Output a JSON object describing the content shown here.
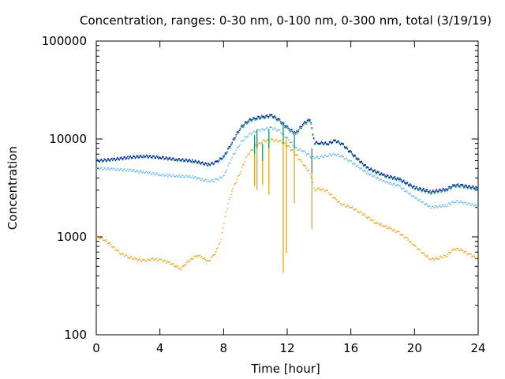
{
  "chart_data": {
    "type": "scatter",
    "title": "Concentration, ranges: 0-30 nm, 0-100 nm, 0-300 nm, total (3/19/19)",
    "xlabel": "Time [hour]",
    "ylabel": "Concentration",
    "xlim": [
      0,
      24
    ],
    "ylim": [
      100,
      100000
    ],
    "yscale": "log",
    "xticks": [
      0,
      4,
      8,
      12,
      16,
      20,
      24
    ],
    "xtick_labels": [
      "0",
      "4",
      "8",
      "12",
      "16",
      "20",
      "24"
    ],
    "yticks": [
      100,
      1000,
      10000,
      100000
    ],
    "ytick_labels": [
      "100",
      "1000",
      "10000",
      "100000"
    ],
    "grid": false,
    "legend": "none",
    "series": [
      {
        "color": "#e69f00",
        "points": [
          [
            0,
            1000
          ],
          [
            0.5,
            930
          ],
          [
            1,
            800
          ],
          [
            1.5,
            680
          ],
          [
            2,
            620
          ],
          [
            2.5,
            590
          ],
          [
            3,
            570
          ],
          [
            3.5,
            590
          ],
          [
            4,
            580
          ],
          [
            4.5,
            550
          ],
          [
            5,
            500
          ],
          [
            5.3,
            470
          ],
          [
            5.6,
            540
          ],
          [
            6,
            600
          ],
          [
            6.3,
            650
          ],
          [
            6.6,
            620
          ],
          [
            7,
            560
          ],
          [
            7.3,
            630
          ],
          [
            7.6,
            760
          ],
          [
            7.8,
            950
          ],
          [
            8,
            1400
          ],
          [
            8.2,
            2000
          ],
          [
            8.5,
            3000
          ],
          [
            9,
            4500
          ],
          [
            9.5,
            7000
          ],
          [
            10,
            8500
          ],
          [
            10.5,
            9500
          ],
          [
            11,
            9800
          ],
          [
            11.5,
            9500
          ],
          [
            12,
            8500
          ],
          [
            12.5,
            7000
          ],
          [
            13,
            5500
          ],
          [
            13.4,
            4500
          ],
          [
            13.7,
            3000
          ],
          [
            14,
            3100
          ],
          [
            14.5,
            2900
          ],
          [
            15,
            2400
          ],
          [
            15.5,
            2100
          ],
          [
            16,
            2000
          ],
          [
            16.5,
            1800
          ],
          [
            17,
            1600
          ],
          [
            17.5,
            1400
          ],
          [
            18,
            1300
          ],
          [
            18.5,
            1200
          ],
          [
            19,
            1100
          ],
          [
            19.5,
            950
          ],
          [
            20,
            800
          ],
          [
            20.5,
            680
          ],
          [
            21,
            590
          ],
          [
            21.5,
            610
          ],
          [
            22,
            650
          ],
          [
            22.5,
            760
          ],
          [
            23,
            720
          ],
          [
            23.5,
            650
          ],
          [
            24,
            590
          ]
        ]
      },
      {
        "color": "#56b4e9",
        "points": [
          [
            0,
            5000
          ],
          [
            1,
            4900
          ],
          [
            2,
            4800
          ],
          [
            3,
            4600
          ],
          [
            4,
            4300
          ],
          [
            5,
            4200
          ],
          [
            6,
            4100
          ],
          [
            7,
            3700
          ],
          [
            7.5,
            3800
          ],
          [
            8,
            4200
          ],
          [
            8.5,
            6500
          ],
          [
            9,
            9000
          ],
          [
            9.5,
            11000
          ],
          [
            10,
            12000
          ],
          [
            10.5,
            12500
          ],
          [
            11,
            13000
          ],
          [
            11.5,
            12000
          ],
          [
            12,
            10000
          ],
          [
            12.5,
            8000
          ],
          [
            13,
            7500
          ],
          [
            13.5,
            6500
          ],
          [
            14,
            6500
          ],
          [
            14.5,
            6800
          ],
          [
            15,
            7000
          ],
          [
            15.5,
            6500
          ],
          [
            16,
            5800
          ],
          [
            17,
            4500
          ],
          [
            18,
            3700
          ],
          [
            19,
            3300
          ],
          [
            20,
            2500
          ],
          [
            21,
            2000
          ],
          [
            22,
            2100
          ],
          [
            22.5,
            2300
          ],
          [
            23,
            2250
          ],
          [
            24,
            2050
          ]
        ]
      },
      {
        "color": "#009e73",
        "points": [
          [
            0,
            5900
          ],
          [
            1,
            6100
          ],
          [
            2,
            6400
          ],
          [
            3,
            6600
          ],
          [
            4,
            6400
          ],
          [
            5,
            6100
          ],
          [
            6,
            5900
          ],
          [
            7,
            5400
          ],
          [
            7.5,
            5700
          ],
          [
            8,
            6500
          ],
          [
            8.5,
            9000
          ],
          [
            9,
            12500
          ],
          [
            9.5,
            15000
          ],
          [
            10,
            16000
          ],
          [
            10.5,
            16500
          ],
          [
            11,
            17000
          ],
          [
            11.5,
            15000
          ],
          [
            12,
            12500
          ],
          [
            12.5,
            11000
          ],
          [
            13,
            14000
          ],
          [
            13.4,
            15500
          ],
          [
            13.7,
            9000
          ],
          [
            14,
            9000
          ],
          [
            14.5,
            8800
          ],
          [
            15,
            9500
          ],
          [
            15.5,
            8500
          ],
          [
            16,
            7000
          ],
          [
            17,
            5000
          ],
          [
            18,
            4200
          ],
          [
            19,
            3800
          ],
          [
            20,
            3100
          ],
          [
            21,
            2800
          ],
          [
            22,
            3000
          ],
          [
            22.5,
            3300
          ],
          [
            23,
            3250
          ],
          [
            24,
            3050
          ]
        ]
      },
      {
        "color": "#0000b4",
        "points": [
          [
            0,
            6000
          ],
          [
            1,
            6200
          ],
          [
            2,
            6500
          ],
          [
            3,
            6700
          ],
          [
            4,
            6500
          ],
          [
            5,
            6200
          ],
          [
            6,
            6000
          ],
          [
            7,
            5500
          ],
          [
            7.5,
            5800
          ],
          [
            8,
            6700
          ],
          [
            8.5,
            9300
          ],
          [
            9,
            13000
          ],
          [
            9.5,
            15500
          ],
          [
            10,
            16500
          ],
          [
            10.5,
            17000
          ],
          [
            11,
            17500
          ],
          [
            11.5,
            15500
          ],
          [
            12,
            13000
          ],
          [
            12.5,
            11500
          ],
          [
            13,
            14500
          ],
          [
            13.4,
            16000
          ],
          [
            13.7,
            9200
          ],
          [
            14,
            9200
          ],
          [
            14.5,
            9000
          ],
          [
            15,
            9700
          ],
          [
            15.5,
            8700
          ],
          [
            16,
            7200
          ],
          [
            17,
            5100
          ],
          [
            18,
            4300
          ],
          [
            19,
            3900
          ],
          [
            20,
            3200
          ],
          [
            21,
            2900
          ],
          [
            22,
            3100
          ],
          [
            22.5,
            3400
          ],
          [
            23,
            3350
          ],
          [
            24,
            3150
          ]
        ]
      }
    ],
    "spikes": [
      {
        "x": 9.95,
        "top": 9500,
        "bottom": 3300,
        "color": "#e69f00"
      },
      {
        "x": 10.1,
        "top": 11000,
        "bottom": 3000,
        "color": "#e69f00"
      },
      {
        "x": 10.45,
        "top": 8500,
        "bottom": 3400,
        "color": "#e69f00"
      },
      {
        "x": 10.85,
        "top": 12000,
        "bottom": 2700,
        "color": "#e69f00"
      },
      {
        "x": 11.75,
        "top": 14000,
        "bottom": 430,
        "color": "#e69f00"
      },
      {
        "x": 11.95,
        "top": 10500,
        "bottom": 680,
        "color": "#e69f00"
      },
      {
        "x": 12.45,
        "top": 10500,
        "bottom": 2200,
        "color": "#e69f00"
      },
      {
        "x": 13.55,
        "top": 8000,
        "bottom": 1200,
        "color": "#e69f00"
      },
      {
        "x": 9.95,
        "top": 11000,
        "bottom": 7000,
        "color": "#009e73"
      },
      {
        "x": 10.1,
        "top": 12500,
        "bottom": 8000,
        "color": "#009e73"
      },
      {
        "x": 10.45,
        "top": 9000,
        "bottom": 6000,
        "color": "#009e73"
      },
      {
        "x": 10.85,
        "top": 12500,
        "bottom": 8000,
        "color": "#009e73"
      },
      {
        "x": 11.75,
        "top": 15000,
        "bottom": 9000,
        "color": "#009e73"
      },
      {
        "x": 12.45,
        "top": 11000,
        "bottom": 8000,
        "color": "#009e73"
      },
      {
        "x": 13.55,
        "top": 8000,
        "bottom": 4500,
        "color": "#009e73"
      }
    ]
  }
}
